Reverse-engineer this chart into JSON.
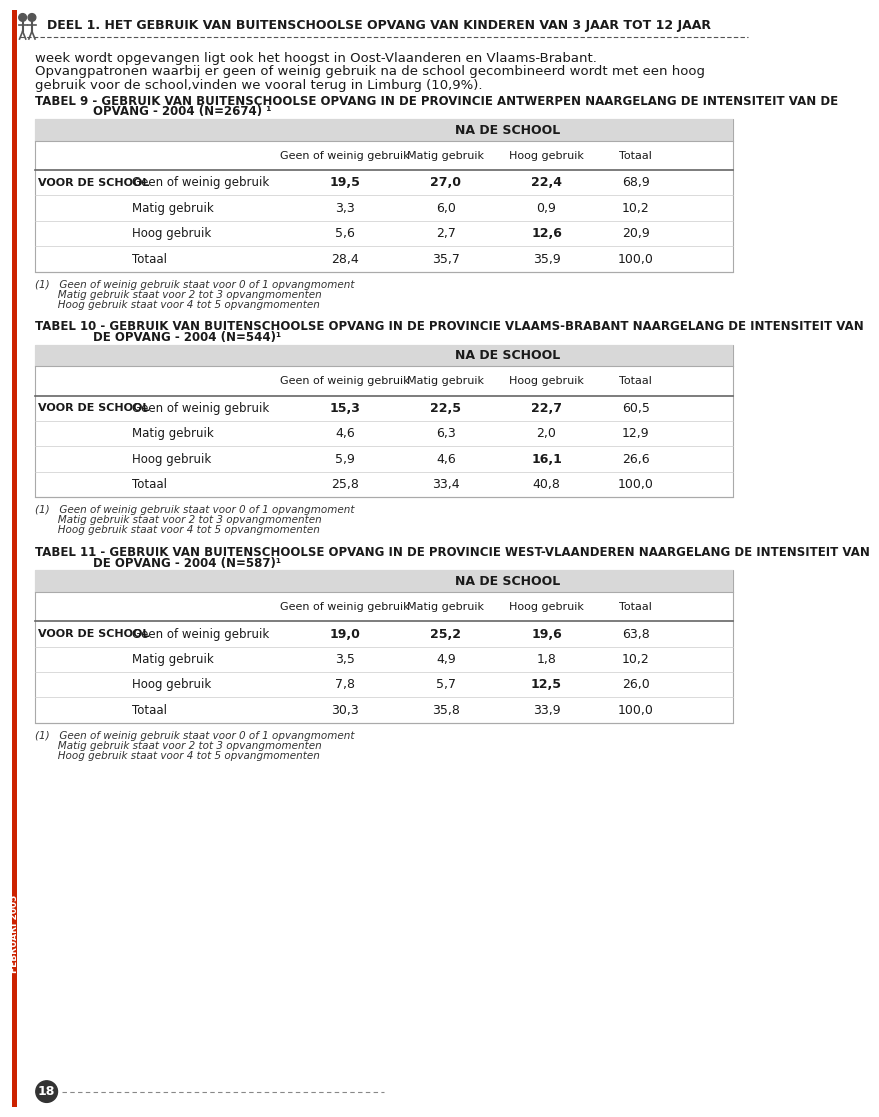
{
  "page_title": "DEEL 1. HET GEBRUIK VAN BUITENSCHOOLSE OPVANG VAN KINDEREN VAN 3 JAAR TOT 12 JAAR",
  "intro_text_1": "week wordt opgevangen ligt ook het hoogst in Oost-Vlaanderen en Vlaams-Brabant.",
  "intro_text_2a": "Opvangpatronen waarbij er geen of weinig gebruik na de school gecombineerd wordt met een hoog",
  "intro_text_2b": "gebruik voor de school,vinden we vooral terug in Limburg (10,9%).",
  "tables": [
    {
      "title_line1": "TABEL 9 - GEBRUIK VAN BUITENSCHOOLSE OPVANG IN DE PROVINCIE ANTWERPEN NAARGELANG DE INTENSITEIT VAN DE",
      "title_line2": "OPVANG - 2004 (N=2674) ¹",
      "title2_indent": 75,
      "header_center": "NA DE SCHOOL",
      "col_headers": [
        "Geen of weinig gebruik",
        "Matig gebruik",
        "Hoog gebruik",
        "Totaal"
      ],
      "row_label_bold": "VOOR DE SCHOOL",
      "rows": [
        {
          "label": "Geen of weinig gebruik",
          "values": [
            "19,5",
            "27,0",
            "22,4",
            "68,9"
          ],
          "bold_cols": [
            0,
            1,
            2
          ]
        },
        {
          "label": "Matig gebruik",
          "values": [
            "3,3",
            "6,0",
            "0,9",
            "10,2"
          ],
          "bold_cols": []
        },
        {
          "label": "Hoog gebruik",
          "values": [
            "5,6",
            "2,7",
            "12,6",
            "20,9"
          ],
          "bold_cols": [
            2
          ]
        },
        {
          "label": "Totaal",
          "values": [
            "28,4",
            "35,7",
            "35,9",
            "100,0"
          ],
          "bold_cols": []
        }
      ],
      "footnotes": [
        "(1)   Geen of weinig gebruik staat voor 0 of 1 opvangmoment",
        "       Matig gebruik staat voor 2 tot 3 opvangmomenten",
        "       Hoog gebruik staat voor 4 tot 5 opvangmomenten"
      ]
    },
    {
      "title_line1": "TABEL 10 - GEBRUIK VAN BUITENSCHOOLSE OPVANG IN DE PROVINCIE VLAAMS-BRABANT NAARGELANG DE INTENSITEIT VAN",
      "title_line2": "DE OPVANG - 2004 (N=544)¹",
      "title2_indent": 75,
      "header_center": "NA DE SCHOOL",
      "col_headers": [
        "Geen of weinig gebruik",
        "Matig gebruik",
        "Hoog gebruik",
        "Totaal"
      ],
      "row_label_bold": "VOOR DE SCHOOL",
      "rows": [
        {
          "label": "Geen of weinig gebruik",
          "values": [
            "15,3",
            "22,5",
            "22,7",
            "60,5"
          ],
          "bold_cols": [
            0,
            1,
            2
          ]
        },
        {
          "label": "Matig gebruik",
          "values": [
            "4,6",
            "6,3",
            "2,0",
            "12,9"
          ],
          "bold_cols": []
        },
        {
          "label": "Hoog gebruik",
          "values": [
            "5,9",
            "4,6",
            "16,1",
            "26,6"
          ],
          "bold_cols": [
            2
          ]
        },
        {
          "label": "Totaal",
          "values": [
            "25,8",
            "33,4",
            "40,8",
            "100,0"
          ],
          "bold_cols": []
        }
      ],
      "footnotes": [
        "(1)   Geen of weinig gebruik staat voor 0 of 1 opvangmoment",
        "       Matig gebruik staat voor 2 tot 3 opvangmomenten",
        "       Hoog gebruik staat voor 4 tot 5 opvangmomenten"
      ]
    },
    {
      "title_line1": "TABEL 11 - GEBRUIK VAN BUITENSCHOOLSE OPVANG IN DE PROVINCIE WEST-VLAANDEREN NAARGELANG DE INTENSITEIT VAN",
      "title_line2": "DE OPVANG - 2004 (N=587)¹",
      "title2_indent": 75,
      "header_center": "NA DE SCHOOL",
      "col_headers": [
        "Geen of weinig gebruik",
        "Matig gebruik",
        "Hoog gebruik",
        "Totaal"
      ],
      "row_label_bold": "VOOR DE SCHOOL",
      "rows": [
        {
          "label": "Geen of weinig gebruik",
          "values": [
            "19,0",
            "25,2",
            "19,6",
            "63,8"
          ],
          "bold_cols": [
            0,
            1,
            2
          ]
        },
        {
          "label": "Matig gebruik",
          "values": [
            "3,5",
            "4,9",
            "1,8",
            "10,2"
          ],
          "bold_cols": []
        },
        {
          "label": "Hoog gebruik",
          "values": [
            "7,8",
            "5,7",
            "12,5",
            "26,0"
          ],
          "bold_cols": [
            2
          ]
        },
        {
          "label": "Totaal",
          "values": [
            "30,3",
            "35,8",
            "33,9",
            "100,0"
          ],
          "bold_cols": []
        }
      ],
      "footnotes": [
        "(1)   Geen of weinig gebruik staat voor 0 of 1 opvangmoment",
        "       Matig gebruik staat voor 2 tot 3 opvangmomenten",
        "       Hoog gebruik staat voor 4 tot 5 opvangmomenten"
      ]
    }
  ],
  "page_number": "18",
  "footer_text": "FEBRUARI 2005",
  "bg_color": "#ffffff",
  "sidebar_color": "#cc2200",
  "text_color": "#1a1a1a",
  "border_color": "#aaaaaa",
  "header_gray": "#d8d8d8",
  "footnote_line_color": "#cc2200"
}
